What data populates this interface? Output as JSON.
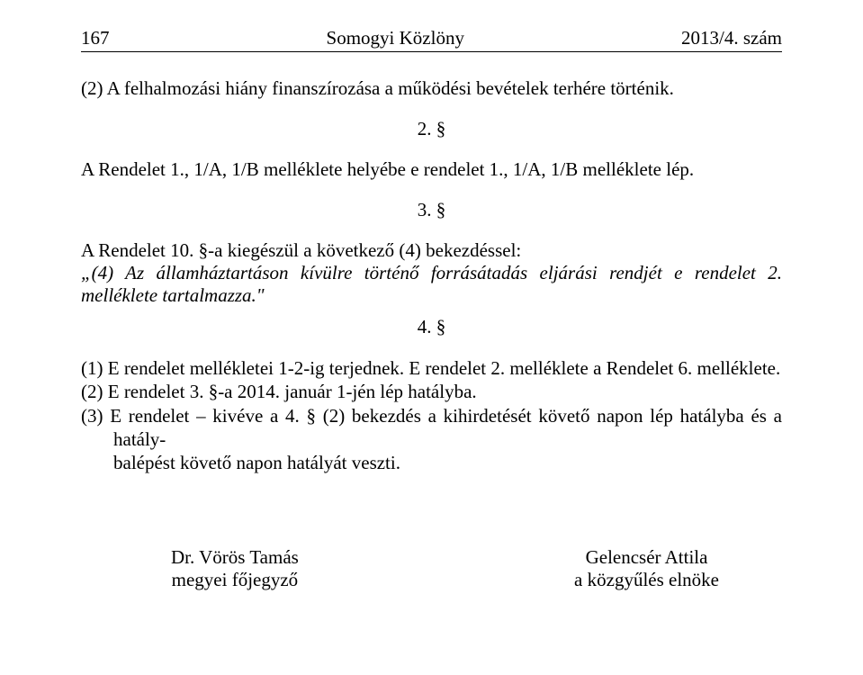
{
  "header": {
    "page_number": "167",
    "title": "Somogyi Közlöny",
    "issue": "2013/4. szám"
  },
  "body": {
    "para1": "(2)  A felhalmozási hiány finanszírozása a működési bevételek terhére történik.",
    "sec2": "2. §",
    "para2": "A Rendelet 1., 1/A, 1/B melléklete helyébe e rendelet 1., 1/A, 1/B melléklete lép.",
    "sec3": "3. §",
    "para3_lead": "A Rendelet 10. §-a kiegészül a következő (4) bekezdéssel:",
    "para3_quote": "„(4) Az államháztartáson kívülre történő forrásátadás eljárási rendjét e rendelet 2. melléklete tartalmazza.\"",
    "sec4": "4. §",
    "item1": "(1)  E rendelet mellékletei 1-2-ig terjednek. E rendelet 2. melléklete a Rendelet 6. melléklete.",
    "item2": "(2)  E rendelet 3. §-a 2014. január 1-jén lép hatályba.",
    "item3a": "(3)  E rendelet – kivéve a 4. § (2) bekezdés a kihirdetését követő napon lép hatályba és a hatály-",
    "item3b": "balépést követő napon hatályát veszti."
  },
  "signatures": {
    "left_name": "Dr. Vörös Tamás",
    "left_title": "megyei főjegyző",
    "right_name": "Gelencsér Attila",
    "right_title": "a közgyűlés elnöke"
  }
}
